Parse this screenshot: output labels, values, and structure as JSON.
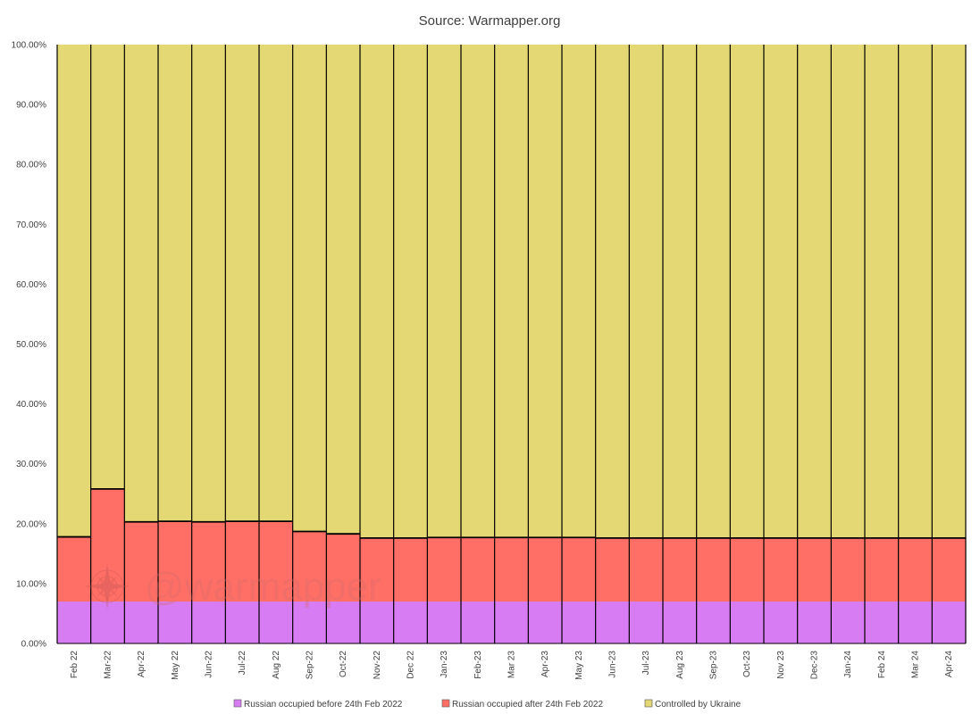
{
  "chart_data": {
    "type": "bar",
    "stacked": true,
    "percent_stacked": true,
    "title": "Source: Warmapper.org",
    "xlabel": "",
    "ylabel": "",
    "ylim": [
      0,
      100
    ],
    "y_ticks": [
      "0.00%",
      "10.00%",
      "20.00%",
      "30.00%",
      "40.00%",
      "50.00%",
      "60.00%",
      "70.00%",
      "80.00%",
      "90.00%",
      "100.00%"
    ],
    "grid": false,
    "legend_position": "bottom",
    "watermark": "@warmapper",
    "categories": [
      "Feb 22",
      "Mar-22",
      "Apr-22",
      "May 22",
      "Jun-22",
      "Jul-22",
      "Aug 22",
      "Sep-22",
      "Oct-22",
      "Nov-22",
      "Dec 22",
      "Jan-23",
      "Feb-23",
      "Mar 23",
      "Apr-23",
      "May 23",
      "Jun-23",
      "Jul-23",
      "Aug 23",
      "Sep-23",
      "Oct-23",
      "Nov 23",
      "Dec-23",
      "Jan-24",
      "Feb 24",
      "Mar 24",
      "Apr-24"
    ],
    "series": [
      {
        "name": "Russian occupied before 24th Feb 2022",
        "color": "#d77cf2",
        "values": [
          7.0,
          7.0,
          7.0,
          7.0,
          7.0,
          7.0,
          7.0,
          7.0,
          7.0,
          7.0,
          7.0,
          7.0,
          7.0,
          7.0,
          7.0,
          7.0,
          7.0,
          7.0,
          7.0,
          7.0,
          7.0,
          7.0,
          7.0,
          7.0,
          7.0,
          7.0,
          7.0
        ]
      },
      {
        "name": "Russian occupied after 24th Feb 2022",
        "color": "#ff6f66",
        "values": [
          10.8,
          18.8,
          13.3,
          13.4,
          13.3,
          13.4,
          13.4,
          11.7,
          11.3,
          10.6,
          10.6,
          10.7,
          10.7,
          10.7,
          10.7,
          10.7,
          10.6,
          10.6,
          10.6,
          10.6,
          10.6,
          10.6,
          10.6,
          10.6,
          10.6,
          10.6,
          10.6
        ]
      },
      {
        "name": "Controlled by Ukraine",
        "color": "#e3d873",
        "values": [
          82.2,
          74.2,
          79.7,
          79.6,
          79.7,
          79.6,
          79.6,
          81.3,
          81.7,
          82.4,
          82.4,
          82.3,
          82.3,
          82.3,
          82.3,
          82.3,
          82.4,
          82.4,
          82.4,
          82.4,
          82.4,
          82.4,
          82.4,
          82.4,
          82.4,
          82.4,
          82.4
        ]
      }
    ]
  }
}
